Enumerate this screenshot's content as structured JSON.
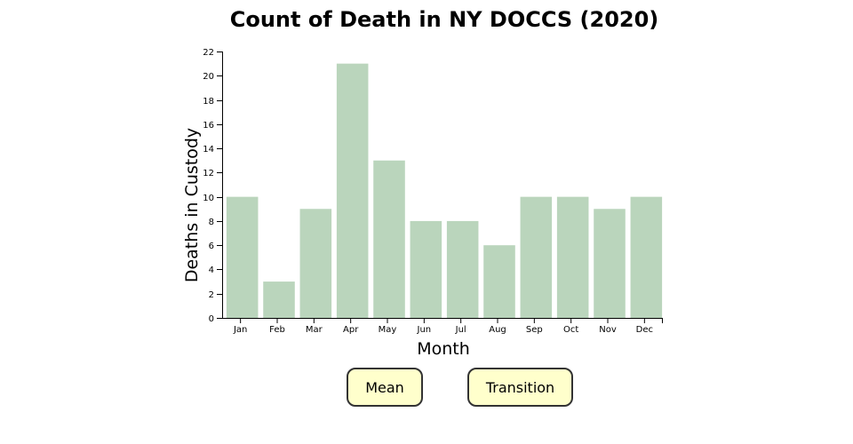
{
  "chart_data": {
    "type": "bar",
    "title": "Count of Death in NY DOCCS (2020)",
    "xlabel": "Month",
    "ylabel": "Deaths in Custody",
    "categories": [
      "Jan",
      "Feb",
      "Mar",
      "Apr",
      "May",
      "Jun",
      "Jul",
      "Aug",
      "Sep",
      "Oct",
      "Nov",
      "Dec"
    ],
    "values": [
      10,
      3,
      9,
      21,
      13,
      8,
      8,
      6,
      10,
      10,
      9,
      10
    ],
    "ylim": [
      0,
      22
    ],
    "yticks": [
      0,
      2,
      4,
      6,
      8,
      10,
      12,
      14,
      16,
      18,
      20,
      22
    ],
    "bar_color": "#bad5bc",
    "grid": false
  },
  "buttons": {
    "mean_label": "Mean",
    "transition_label": "Transition",
    "color": "#ffffcc"
  }
}
